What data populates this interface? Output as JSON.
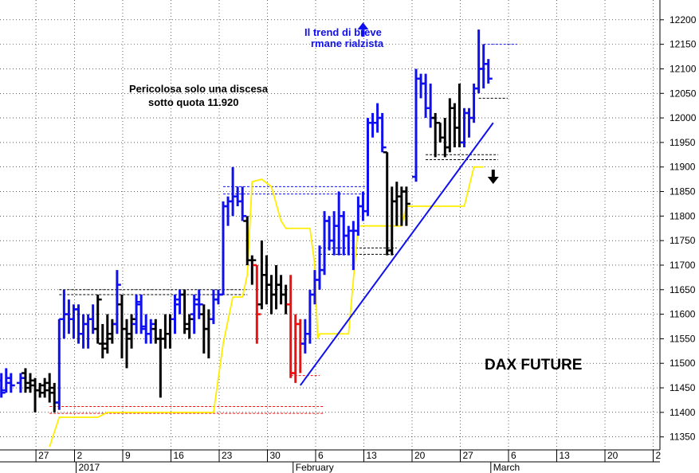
{
  "chart_data": {
    "type": "ohlc",
    "title": "DAX FUTURE",
    "annotations": [
      {
        "text": "Il trend di breve",
        "color": "#1010ee"
      },
      {
        "text": "rmane rialzista",
        "color": "#1010ee"
      },
      {
        "text": "Pericolosa solo una discesa",
        "color": "#000000"
      },
      {
        "text": "sotto quota 11.920",
        "color": "#000000"
      }
    ],
    "arrows": [
      {
        "name": "up-arrow",
        "direction": "up",
        "x": 19.5,
        "y": 12180,
        "color": "#1010ee"
      },
      {
        "name": "down-arrow",
        "direction": "down",
        "x": 33,
        "y": 11880,
        "color": "#000000"
      }
    ],
    "ylim": [
      11320,
      12240
    ],
    "y_ticks": [
      11350,
      11400,
      11450,
      11500,
      11550,
      11600,
      11650,
      11700,
      11750,
      11800,
      11850,
      11900,
      11950,
      12000,
      12050,
      12100,
      12150,
      12200
    ],
    "x_ticks": [
      {
        "label": "27",
        "x": -14
      },
      {
        "label": "2",
        "x": -10
      },
      {
        "label": "9",
        "x": -5
      },
      {
        "label": "16",
        "x": 0
      },
      {
        "label": "23",
        "x": 5
      },
      {
        "label": "30",
        "x": 10
      },
      {
        "label": "6",
        "x": 15
      },
      {
        "label": "13",
        "x": 20
      },
      {
        "label": "20",
        "x": 25
      },
      {
        "label": "27",
        "x": 30
      },
      {
        "label": "6",
        "x": 35
      },
      {
        "label": "13",
        "x": 40
      },
      {
        "label": "20",
        "x": 45
      },
      {
        "label": "2",
        "x": 50
      }
    ],
    "months": [
      {
        "label": "2017",
        "x": -10
      },
      {
        "label": "February",
        "x": 12.5
      },
      {
        "label": "March",
        "x": 33
      }
    ],
    "colors": {
      "up": "#1010ee",
      "down": "#000000",
      "red": "#ee1010",
      "trend": "#1010ee",
      "support": "#ffee00",
      "grid": "#000000"
    },
    "bars": [
      {
        "x": -20.5,
        "o": 11470,
        "h": 11480,
        "l": 11450,
        "c": 11460,
        "color": "blue"
      },
      {
        "x": -20,
        "o": 11460,
        "h": 11480,
        "l": 11440,
        "c": 11450,
        "color": "blue"
      },
      {
        "x": -19.5,
        "o": 11450,
        "h": 11490,
        "l": 11440,
        "c": 11470,
        "color": "blue"
      },
      {
        "x": -19,
        "o": 11470,
        "h": 11480,
        "l": 11440,
        "c": 11455,
        "color": "blue"
      },
      {
        "x": -18.5,
        "o": 11460,
        "h": 11480,
        "l": 11440,
        "c": 11465,
        "color": "blue"
      },
      {
        "x": -18,
        "o": 11465,
        "h": 11480,
        "l": 11430,
        "c": 11440,
        "color": "blue"
      },
      {
        "x": -17.5,
        "o": 11445,
        "h": 11490,
        "l": 11440,
        "c": 11470,
        "color": "blue"
      },
      {
        "x": -17,
        "o": 11460,
        "h": 11480,
        "l": 11440,
        "c": 11455,
        "color": "blue"
      },
      {
        "x": -16,
        "o": 11460,
        "h": 11480,
        "l": 11440,
        "c": 11470,
        "color": "blue"
      },
      {
        "x": -15.5,
        "o": 11480,
        "h": 11490,
        "l": 11440,
        "c": 11450,
        "color": "black"
      },
      {
        "x": -15,
        "o": 11460,
        "h": 11480,
        "l": 11440,
        "c": 11455,
        "color": "black"
      },
      {
        "x": -14.5,
        "o": 11465,
        "h": 11470,
        "l": 11400,
        "c": 11445,
        "color": "black"
      },
      {
        "x": -14,
        "o": 11445,
        "h": 11460,
        "l": 11430,
        "c": 11440,
        "color": "black"
      },
      {
        "x": -13.5,
        "o": 11455,
        "h": 11470,
        "l": 11430,
        "c": 11445,
        "color": "black"
      },
      {
        "x": -13,
        "o": 11460,
        "h": 11480,
        "l": 11420,
        "c": 11440,
        "color": "black"
      },
      {
        "x": -12.5,
        "o": 11450,
        "h": 11460,
        "l": 11400,
        "c": 11420,
        "color": "black"
      },
      {
        "x": -12,
        "o": 11420,
        "h": 11590,
        "l": 11405,
        "c": 11590,
        "color": "blue"
      },
      {
        "x": -11.5,
        "o": 11590,
        "h": 11650,
        "l": 11550,
        "c": 11600,
        "color": "blue"
      },
      {
        "x": -11,
        "o": 11600,
        "h": 11630,
        "l": 11560,
        "c": 11590,
        "color": "blue"
      },
      {
        "x": -10.5,
        "o": 11590,
        "h": 11620,
        "l": 11550,
        "c": 11610,
        "color": "blue"
      },
      {
        "x": -10,
        "o": 11610,
        "h": 11620,
        "l": 11540,
        "c": 11560,
        "color": "blue"
      },
      {
        "x": -9.5,
        "o": 11560,
        "h": 11600,
        "l": 11530,
        "c": 11580,
        "color": "blue"
      },
      {
        "x": -9,
        "o": 11580,
        "h": 11600,
        "l": 11530,
        "c": 11590,
        "color": "blue"
      },
      {
        "x": -8.5,
        "o": 11590,
        "h": 11620,
        "l": 11560,
        "c": 11570,
        "color": "blue"
      },
      {
        "x": -8,
        "o": 11570,
        "h": 11640,
        "l": 11540,
        "c": 11630,
        "color": "black"
      },
      {
        "x": -7.5,
        "o": 11540,
        "h": 11580,
        "l": 11510,
        "c": 11530,
        "color": "black"
      },
      {
        "x": -7,
        "o": 11540,
        "h": 11600,
        "l": 11520,
        "c": 11550,
        "color": "black"
      },
      {
        "x": -6.5,
        "o": 11560,
        "h": 11590,
        "l": 11540,
        "c": 11580,
        "color": "black"
      },
      {
        "x": -6,
        "o": 11580,
        "h": 11690,
        "l": 11560,
        "c": 11660,
        "color": "blue"
      },
      {
        "x": -5.5,
        "o": 11620,
        "h": 11640,
        "l": 11510,
        "c": 11570,
        "color": "black"
      },
      {
        "x": -5,
        "o": 11570,
        "h": 11590,
        "l": 11490,
        "c": 11550,
        "color": "black"
      },
      {
        "x": -4.5,
        "o": 11560,
        "h": 11600,
        "l": 11530,
        "c": 11590,
        "color": "black"
      },
      {
        "x": -4,
        "o": 11580,
        "h": 11640,
        "l": 11560,
        "c": 11625,
        "color": "blue"
      },
      {
        "x": -3.5,
        "o": 11620,
        "h": 11640,
        "l": 11560,
        "c": 11575,
        "color": "blue"
      },
      {
        "x": -3,
        "o": 11570,
        "h": 11600,
        "l": 11540,
        "c": 11560,
        "color": "blue"
      },
      {
        "x": -2.5,
        "o": 11560,
        "h": 11590,
        "l": 11540,
        "c": 11580,
        "color": "blue"
      },
      {
        "x": -2,
        "o": 11570,
        "h": 11590,
        "l": 11540,
        "c": 11550,
        "color": "black"
      },
      {
        "x": -1.5,
        "o": 11550,
        "h": 11570,
        "l": 11430,
        "c": 11550,
        "color": "black"
      },
      {
        "x": -1,
        "o": 11550,
        "h": 11600,
        "l": 11530,
        "c": 11560,
        "color": "black"
      },
      {
        "x": -0.5,
        "o": 11560,
        "h": 11600,
        "l": 11530,
        "c": 11590,
        "color": "black"
      },
      {
        "x": 0,
        "o": 11590,
        "h": 11640,
        "l": 11560,
        "c": 11630,
        "color": "blue"
      },
      {
        "x": 0.5,
        "o": 11620,
        "h": 11650,
        "l": 11600,
        "c": 11640,
        "color": "blue"
      },
      {
        "x": 1,
        "o": 11640,
        "h": 11650,
        "l": 11560,
        "c": 11570,
        "color": "black"
      },
      {
        "x": 1.5,
        "o": 11580,
        "h": 11600,
        "l": 11550,
        "c": 11590,
        "color": "black"
      },
      {
        "x": 2,
        "o": 11600,
        "h": 11640,
        "l": 11560,
        "c": 11620,
        "color": "blue"
      },
      {
        "x": 2.5,
        "o": 11630,
        "h": 11650,
        "l": 11590,
        "c": 11620,
        "color": "blue"
      },
      {
        "x": 3,
        "o": 11600,
        "h": 11620,
        "l": 11520,
        "c": 11570,
        "color": "black"
      },
      {
        "x": 3.5,
        "o": 11570,
        "h": 11610,
        "l": 11510,
        "c": 11590,
        "color": "black"
      },
      {
        "x": 4,
        "o": 11590,
        "h": 11650,
        "l": 11580,
        "c": 11630,
        "color": "blue"
      },
      {
        "x": 4.5,
        "o": 11630,
        "h": 11650,
        "l": 11620,
        "c": 11640,
        "color": "blue"
      },
      {
        "x": 5,
        "o": 11640,
        "h": 11830,
        "l": 11640,
        "c": 11820,
        "color": "blue"
      },
      {
        "x": 5.5,
        "o": 11820,
        "h": 11840,
        "l": 11780,
        "c": 11830,
        "color": "blue"
      },
      {
        "x": 6,
        "o": 11830,
        "h": 11900,
        "l": 11800,
        "c": 11840,
        "color": "blue"
      },
      {
        "x": 6.5,
        "o": 11840,
        "h": 11860,
        "l": 11820,
        "c": 11830,
        "color": "blue"
      },
      {
        "x": 7,
        "o": 11830,
        "h": 11860,
        "l": 11790,
        "c": 11800,
        "color": "blue"
      },
      {
        "x": 7.5,
        "o": 11790,
        "h": 11800,
        "l": 11700,
        "c": 11710,
        "color": "black"
      },
      {
        "x": 8,
        "o": 11710,
        "h": 11720,
        "l": 11660,
        "c": 11710,
        "color": "black"
      },
      {
        "x": 8.5,
        "o": 11700,
        "h": 11700,
        "l": 11540,
        "c": 11600,
        "color": "red"
      },
      {
        "x": 9,
        "o": 11620,
        "h": 11750,
        "l": 11610,
        "c": 11680,
        "color": "black"
      },
      {
        "x": 9.5,
        "o": 11680,
        "h": 11720,
        "l": 11620,
        "c": 11660,
        "color": "black"
      },
      {
        "x": 10,
        "o": 11660,
        "h": 11680,
        "l": 11600,
        "c": 11640,
        "color": "black"
      },
      {
        "x": 10.5,
        "o": 11640,
        "h": 11700,
        "l": 11610,
        "c": 11660,
        "color": "black"
      },
      {
        "x": 11,
        "o": 11660,
        "h": 11680,
        "l": 11620,
        "c": 11640,
        "color": "black"
      },
      {
        "x": 11.5,
        "o": 11640,
        "h": 11660,
        "l": 11600,
        "c": 11620,
        "color": "black"
      },
      {
        "x": 12,
        "o": 11620,
        "h": 11680,
        "l": 11470,
        "c": 11480,
        "color": "red"
      },
      {
        "x": 12.5,
        "o": 11480,
        "h": 11600,
        "l": 11460,
        "c": 11580,
        "color": "red"
      },
      {
        "x": 13,
        "o": 11580,
        "h": 11590,
        "l": 11480,
        "c": 11540,
        "color": "red"
      },
      {
        "x": 13.5,
        "o": 11540,
        "h": 11590,
        "l": 11520,
        "c": 11560,
        "color": "blue"
      },
      {
        "x": 14,
        "o": 11560,
        "h": 11650,
        "l": 11540,
        "c": 11640,
        "color": "blue"
      },
      {
        "x": 14.5,
        "o": 11640,
        "h": 11690,
        "l": 11620,
        "c": 11670,
        "color": "blue"
      },
      {
        "x": 15,
        "o": 11670,
        "h": 11740,
        "l": 11650,
        "c": 11690,
        "color": "blue"
      },
      {
        "x": 15.5,
        "o": 11690,
        "h": 11810,
        "l": 11680,
        "c": 11790,
        "color": "blue"
      },
      {
        "x": 16,
        "o": 11790,
        "h": 11800,
        "l": 11730,
        "c": 11750,
        "color": "blue"
      },
      {
        "x": 16.5,
        "o": 11750,
        "h": 11810,
        "l": 11720,
        "c": 11780,
        "color": "blue"
      },
      {
        "x": 17,
        "o": 11780,
        "h": 11850,
        "l": 11720,
        "c": 11800,
        "color": "blue"
      },
      {
        "x": 17.5,
        "o": 11800,
        "h": 11810,
        "l": 11720,
        "c": 11760,
        "color": "blue"
      },
      {
        "x": 18,
        "o": 11760,
        "h": 11780,
        "l": 11720,
        "c": 11770,
        "color": "blue"
      },
      {
        "x": 18.5,
        "o": 11770,
        "h": 11790,
        "l": 11690,
        "c": 11770,
        "color": "blue"
      },
      {
        "x": 19,
        "o": 11770,
        "h": 11840,
        "l": 11760,
        "c": 11820,
        "color": "blue"
      },
      {
        "x": 19.5,
        "o": 11820,
        "h": 11850,
        "l": 11790,
        "c": 11810,
        "color": "blue"
      },
      {
        "x": 20,
        "o": 11810,
        "h": 12000,
        "l": 11800,
        "c": 11990,
        "color": "blue"
      },
      {
        "x": 20.5,
        "o": 11990,
        "h": 12010,
        "l": 11960,
        "c": 11990,
        "color": "blue"
      },
      {
        "x": 21,
        "o": 11990,
        "h": 12030,
        "l": 11970,
        "c": 12000,
        "color": "blue"
      },
      {
        "x": 21.5,
        "o": 12000,
        "h": 12010,
        "l": 11930,
        "c": 11940,
        "color": "blue"
      },
      {
        "x": 22,
        "o": 11930,
        "h": 11930,
        "l": 11720,
        "c": 11730,
        "color": "black"
      },
      {
        "x": 22.5,
        "o": 11730,
        "h": 11860,
        "l": 11720,
        "c": 11830,
        "color": "black"
      },
      {
        "x": 23,
        "o": 11830,
        "h": 11870,
        "l": 11780,
        "c": 11840,
        "color": "black"
      },
      {
        "x": 23.5,
        "o": 11840,
        "h": 11860,
        "l": 11780,
        "c": 11850,
        "color": "black"
      },
      {
        "x": 24,
        "o": 11850,
        "h": 11860,
        "l": 11780,
        "c": 11825,
        "color": "black"
      },
      {
        "x": 25,
        "o": 11880,
        "h": 12100,
        "l": 11870,
        "c": 12080,
        "color": "blue"
      },
      {
        "x": 25.5,
        "o": 12080,
        "h": 12090,
        "l": 12040,
        "c": 12070,
        "color": "blue"
      },
      {
        "x": 26,
        "o": 12070,
        "h": 12090,
        "l": 12000,
        "c": 12020,
        "color": "blue"
      },
      {
        "x": 26.5,
        "o": 12020,
        "h": 12070,
        "l": 11980,
        "c": 12000,
        "color": "blue"
      },
      {
        "x": 27,
        "o": 12000,
        "h": 12010,
        "l": 11920,
        "c": 11990,
        "color": "black"
      },
      {
        "x": 27.5,
        "o": 11990,
        "h": 11990,
        "l": 11950,
        "c": 11960,
        "color": "black"
      },
      {
        "x": 28,
        "o": 11960,
        "h": 12000,
        "l": 11920,
        "c": 11940,
        "color": "black"
      },
      {
        "x": 28.5,
        "o": 11940,
        "h": 12040,
        "l": 11930,
        "c": 12020,
        "color": "black"
      },
      {
        "x": 29,
        "o": 12020,
        "h": 12030,
        "l": 11940,
        "c": 11980,
        "color": "black"
      },
      {
        "x": 29.5,
        "o": 11980,
        "h": 12070,
        "l": 11940,
        "c": 11950,
        "color": "black"
      },
      {
        "x": 30,
        "o": 11950,
        "h": 12020,
        "l": 11940,
        "c": 12010,
        "color": "blue"
      },
      {
        "x": 30.5,
        "o": 12010,
        "h": 12020,
        "l": 11960,
        "c": 12000,
        "color": "blue"
      },
      {
        "x": 31,
        "o": 12000,
        "h": 12070,
        "l": 11990,
        "c": 12060,
        "color": "blue"
      },
      {
        "x": 31.5,
        "o": 12060,
        "h": 12180,
        "l": 12050,
        "c": 12100,
        "color": "blue"
      },
      {
        "x": 32,
        "o": 12100,
        "h": 12150,
        "l": 12060,
        "c": 12110,
        "color": "blue"
      },
      {
        "x": 32.5,
        "o": 12110,
        "h": 12120,
        "l": 12070,
        "c": 12080,
        "color": "blue"
      }
    ],
    "trend_lines": [
      {
        "from": [
          13,
          11455
        ],
        "to": [
          33,
          11990
        ]
      }
    ],
    "support_line": [
      [
        -13,
        11330
      ],
      [
        -12,
        11390
      ],
      [
        -11,
        11390
      ],
      [
        -8,
        11390
      ],
      [
        -7,
        11400
      ],
      [
        4,
        11400
      ],
      [
        5,
        11540
      ],
      [
        6,
        11635
      ],
      [
        7,
        11635
      ],
      [
        7.5,
        11680
      ],
      [
        8,
        11870
      ],
      [
        9,
        11875
      ],
      [
        10,
        11860
      ],
      [
        11,
        11790
      ],
      [
        11.5,
        11775
      ],
      [
        14,
        11775
      ],
      [
        14.5,
        11700
      ],
      [
        14.8,
        11550
      ],
      [
        15,
        11560
      ],
      [
        18,
        11560
      ],
      [
        19,
        11780
      ],
      [
        22,
        11780
      ],
      [
        23.5,
        11780
      ],
      [
        24,
        11820
      ],
      [
        26,
        11820
      ],
      [
        28,
        11820
      ],
      [
        30,
        11820
      ],
      [
        31,
        11900
      ],
      [
        32,
        11900
      ]
    ],
    "h_levels": [
      {
        "y": 11650,
        "x1": -12,
        "x2": 7.5,
        "color": "black"
      },
      {
        "y": 11640,
        "x1": -12,
        "x2": 7.5,
        "color": "black"
      },
      {
        "y": 11860,
        "x1": 5,
        "x2": 20,
        "color": "blue"
      },
      {
        "y": 11845,
        "x1": 5,
        "x2": 20,
        "color": "blue"
      },
      {
        "y": 11735,
        "x1": 15,
        "x2": 23,
        "color": "black"
      },
      {
        "y": 11722,
        "x1": 15,
        "x2": 23,
        "color": "black"
      },
      {
        "y": 11925,
        "x1": 26,
        "x2": 33.5,
        "color": "black"
      },
      {
        "y": 11915,
        "x1": 26,
        "x2": 33.5,
        "color": "black"
      },
      {
        "y": 12150,
        "x1": 32,
        "x2": 35.5,
        "color": "blue"
      },
      {
        "y": 12040,
        "x1": 31.5,
        "x2": 34.5,
        "color": "black"
      },
      {
        "y": 11412,
        "x1": -13,
        "x2": 15.5,
        "color": "red"
      },
      {
        "y": 11398,
        "x1": -13,
        "x2": 15.5,
        "color": "red"
      },
      {
        "y": 11475,
        "x1": 12,
        "x2": 15,
        "color": "red"
      }
    ]
  }
}
